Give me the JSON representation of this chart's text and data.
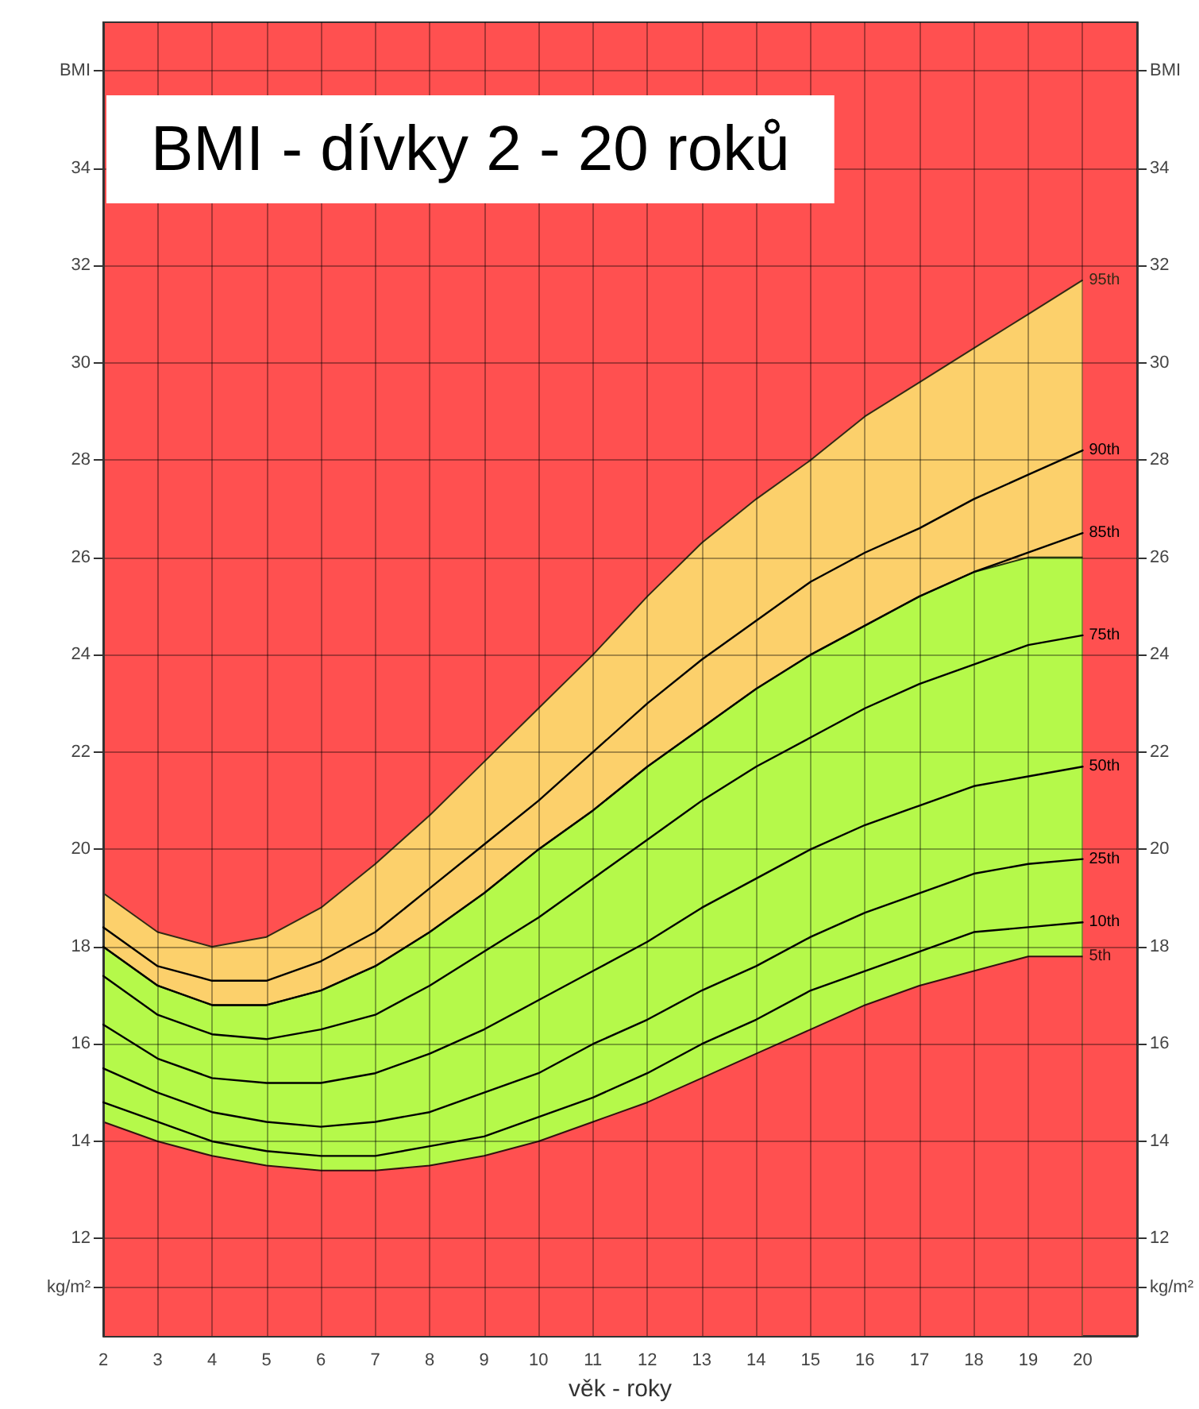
{
  "chart_data": {
    "type": "line",
    "title": "BMI - dívky 2 - 20 roků",
    "xlabel": "věk - roky",
    "x": [
      2,
      3,
      4,
      5,
      6,
      7,
      8,
      9,
      10,
      11,
      12,
      13,
      14,
      15,
      16,
      17,
      18,
      19,
      20
    ],
    "xlim": [
      2,
      21
    ],
    "xticks": [
      2,
      3,
      4,
      5,
      6,
      7,
      8,
      9,
      10,
      11,
      12,
      13,
      14,
      15,
      16,
      17,
      18,
      19,
      20
    ],
    "ylim": [
      10,
      37
    ],
    "yticks": [
      {
        "value": 11,
        "label": "kg/m²"
      },
      12,
      14,
      16,
      18,
      20,
      22,
      24,
      26,
      28,
      30,
      32,
      34,
      {
        "value": 36,
        "label": "BMI"
      }
    ],
    "y2lim": [
      10,
      37
    ],
    "y2ticks": [
      {
        "value": 11,
        "label": "kg/m²"
      },
      12,
      14,
      16,
      18,
      20,
      22,
      24,
      26,
      28,
      30,
      32,
      34,
      {
        "value": 36,
        "label": "BMI"
      }
    ],
    "grid": true,
    "legend": false,
    "marker": "none",
    "line_style": "solid",
    "series": [
      {
        "name": "95th",
        "type": "area",
        "color": "#fcd06b",
        "values": [
          19.1,
          18.3,
          18.0,
          18.2,
          18.8,
          19.7,
          20.7,
          21.8,
          22.9,
          24.0,
          25.2,
          26.3,
          27.2,
          28.0,
          28.9,
          29.6,
          30.3,
          31.0,
          31.7
        ]
      },
      {
        "type": "area",
        "color": "#b5f94a",
        "values": [
          18.0,
          17.2,
          16.8,
          16.8,
          17.1,
          17.6,
          18.3,
          19.1,
          20.0,
          20.8,
          21.7,
          22.5,
          23.3,
          24.0,
          24.6,
          25.2,
          25.7,
          26.0,
          26.0
        ]
      },
      {
        "name": "90th",
        "color": "#000000",
        "values": [
          18.4,
          17.6,
          17.3,
          17.3,
          17.7,
          18.3,
          19.2,
          20.1,
          21.0,
          22.0,
          23.0,
          23.9,
          24.7,
          25.5,
          26.1,
          26.6,
          27.2,
          27.7,
          28.2
        ]
      },
      {
        "name": "85th",
        "color": "#000000",
        "values": [
          18.0,
          17.2,
          16.8,
          16.8,
          17.1,
          17.6,
          18.3,
          19.1,
          20.0,
          20.8,
          21.7,
          22.5,
          23.3,
          24.0,
          24.6,
          25.2,
          25.7,
          26.1,
          26.5
        ]
      },
      {
        "name": "75th",
        "color": "#000000",
        "values": [
          17.4,
          16.6,
          16.2,
          16.1,
          16.3,
          16.6,
          17.2,
          17.9,
          18.6,
          19.4,
          20.2,
          21.0,
          21.7,
          22.3,
          22.9,
          23.4,
          23.8,
          24.2,
          24.4
        ]
      },
      {
        "name": "50th",
        "color": "#000000",
        "values": [
          16.4,
          15.7,
          15.3,
          15.2,
          15.2,
          15.4,
          15.8,
          16.3,
          16.9,
          17.5,
          18.1,
          18.8,
          19.4,
          20.0,
          20.5,
          20.9,
          21.3,
          21.5,
          21.7
        ]
      },
      {
        "name": "25th",
        "color": "#000000",
        "values": [
          15.5,
          15.0,
          14.6,
          14.4,
          14.3,
          14.4,
          14.6,
          15.0,
          15.4,
          16.0,
          16.5,
          17.1,
          17.6,
          18.2,
          18.7,
          19.1,
          19.5,
          19.7,
          19.8
        ]
      },
      {
        "name": "10th",
        "color": "#000000",
        "values": [
          14.8,
          14.4,
          14.0,
          13.8,
          13.7,
          13.7,
          13.9,
          14.1,
          14.5,
          14.9,
          15.4,
          16.0,
          16.5,
          17.1,
          17.5,
          17.9,
          18.3,
          18.4,
          18.5
        ]
      },
      {
        "name": "5th",
        "type": "area",
        "color": "#ff5050",
        "values": [
          14.4,
          14.0,
          13.7,
          13.5,
          13.4,
          13.4,
          13.5,
          13.7,
          14.0,
          14.4,
          14.8,
          15.3,
          15.8,
          16.3,
          16.8,
          17.2,
          17.5,
          17.8,
          17.8
        ]
      }
    ]
  }
}
